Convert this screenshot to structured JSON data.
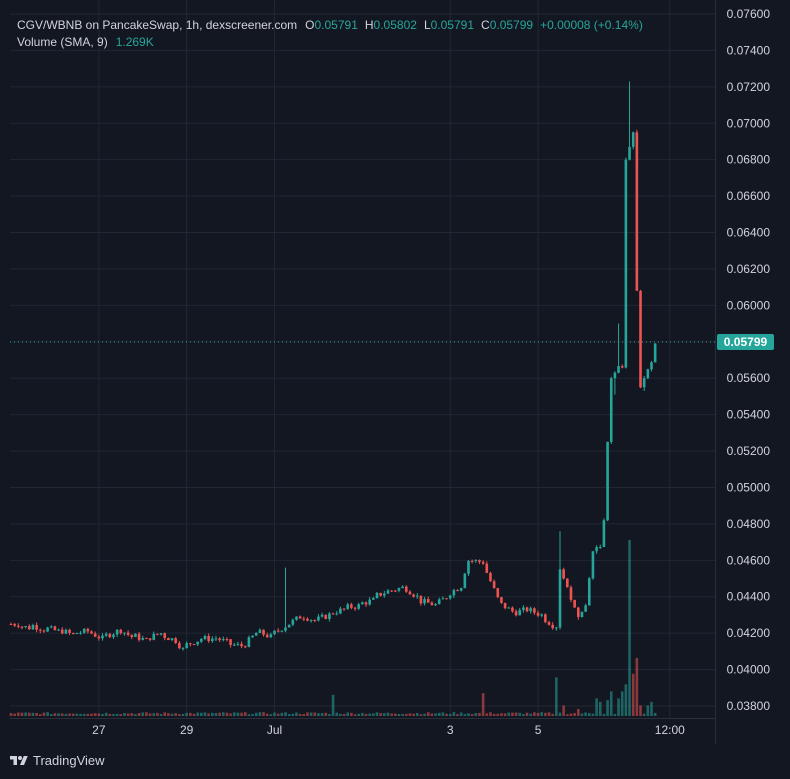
{
  "legend": {
    "symbol": "CGV/WBNB on PancakeSwap, 1h, dexscreener.com",
    "open_label": "O",
    "open": "0.05791",
    "high_label": "H",
    "high": "0.05802",
    "low_label": "L",
    "low": "0.05791",
    "close_label": "C",
    "close": "0.05799",
    "change": "+0.00008 (+0.14%)",
    "volume_title": "Volume (SMA, 9)",
    "volume_value": "1.269K"
  },
  "branding": {
    "name": "TradingView"
  },
  "colors": {
    "up": "#26a69a",
    "down": "#ef5350",
    "background": "#131722",
    "grid": "#232733",
    "text": "#d1d4dc"
  },
  "chart_data": {
    "type": "candlestick",
    "title": "CGV/WBNB on PancakeSwap, 1h",
    "ylim": [
      0.0372,
      0.0763
    ],
    "y_ticks": [
      "0.03800",
      "0.04000",
      "0.04200",
      "0.04400",
      "0.04600",
      "0.04800",
      "0.05000",
      "0.05200",
      "0.05400",
      "0.05600",
      "0.05800",
      "0.06000",
      "0.06200",
      "0.06400",
      "0.06600",
      "0.06800",
      "0.07000",
      "0.07200",
      "0.07400",
      "0.07600"
    ],
    "x_ticks": [
      {
        "label": "27",
        "index": 24
      },
      {
        "label": "29",
        "index": 48
      },
      {
        "label": "Jul",
        "index": 72
      },
      {
        "label": "3",
        "index": 120
      },
      {
        "label": "5",
        "index": 144
      },
      {
        "label": "12:00",
        "index": 180
      }
    ],
    "last_price": "0.05799",
    "grid": true,
    "volume_series": "Volume (SMA, 9)",
    "waypoints": [
      [
        0,
        0.0425,
        0.0425
      ],
      [
        3,
        0.0424,
        0.0423
      ],
      [
        6,
        0.0425,
        0.0422
      ],
      [
        10,
        0.0423,
        0.0421
      ],
      [
        14,
        0.0422,
        0.0419
      ],
      [
        18,
        0.042,
        0.0421
      ],
      [
        22,
        0.0421,
        0.0417
      ],
      [
        26,
        0.0418,
        0.0421
      ],
      [
        30,
        0.0423,
        0.0418
      ],
      [
        34,
        0.0419,
        0.0416
      ],
      [
        38,
        0.0417,
        0.042
      ],
      [
        42,
        0.0419,
        0.0416
      ],
      [
        46,
        0.0416,
        0.0411
      ],
      [
        48,
        0.0413,
        0.0416
      ],
      [
        52,
        0.0417,
        0.0417
      ],
      [
        56,
        0.0418,
        0.0415
      ],
      [
        60,
        0.0414,
        0.0413
      ],
      [
        64,
        0.0412,
        0.042
      ],
      [
        68,
        0.0421,
        0.0418
      ],
      [
        72,
        0.0419,
        0.0424
      ],
      [
        76,
        0.0424,
        0.0429
      ],
      [
        80,
        0.043,
        0.0427
      ],
      [
        84,
        0.0427,
        0.043
      ],
      [
        88,
        0.0431,
        0.0433
      ],
      [
        92,
        0.0434,
        0.0435
      ],
      [
        96,
        0.0436,
        0.0438
      ],
      [
        100,
        0.044,
        0.0443
      ],
      [
        104,
        0.0443,
        0.0445
      ],
      [
        108,
        0.0446,
        0.044
      ],
      [
        112,
        0.0438,
        0.0436
      ],
      [
        116,
        0.0434,
        0.044
      ],
      [
        120,
        0.0441,
        0.0446
      ],
      [
        124,
        0.0448,
        0.046
      ],
      [
        126,
        0.046,
        0.0459
      ],
      [
        130,
        0.0458,
        0.0439
      ],
      [
        134,
        0.0437,
        0.0432
      ],
      [
        138,
        0.0431,
        0.0433
      ],
      [
        142,
        0.0433,
        0.043
      ],
      [
        146,
        0.0429,
        0.0426
      ],
      [
        148,
        0.0425,
        0.0424
      ],
      [
        150,
        0.0425,
        0.0455
      ],
      [
        151,
        0.0455,
        0.045
      ],
      [
        152,
        0.0448,
        0.044
      ],
      [
        154,
        0.0437,
        0.043
      ],
      [
        156,
        0.0432,
        0.0435
      ],
      [
        158,
        0.0437,
        0.0465
      ],
      [
        160,
        0.0465,
        0.0468
      ],
      [
        162,
        0.047,
        0.0482
      ],
      [
        163,
        0.0482,
        0.0525
      ],
      [
        164,
        0.0525,
        0.056
      ],
      [
        165,
        0.056,
        0.0563
      ],
      [
        166,
        0.0563,
        0.0567
      ],
      [
        168,
        0.0567,
        0.068
      ],
      [
        169,
        0.068,
        0.0687
      ],
      [
        170,
        0.0695,
        0.0695
      ],
      [
        171,
        0.0695,
        0.0608
      ],
      [
        172,
        0.0608,
        0.0555
      ],
      [
        173,
        0.0555,
        0.056
      ],
      [
        174,
        0.056,
        0.0568
      ],
      [
        176,
        0.0568,
        0.0579
      ]
    ],
    "volume_spikes": [
      {
        "index": 88,
        "value": 12,
        "side": "up"
      },
      {
        "index": 129,
        "value": 13,
        "side": "down"
      },
      {
        "index": 149,
        "value": 22,
        "side": "up"
      },
      {
        "index": 169,
        "value": 100,
        "side": "up"
      },
      {
        "index": 171,
        "value": 33,
        "side": "down"
      },
      {
        "index": 170,
        "value": 24,
        "side": "down"
      },
      {
        "index": 168,
        "value": 18,
        "side": "up"
      },
      {
        "index": 167,
        "value": 14,
        "side": "up"
      },
      {
        "index": 166,
        "value": 10,
        "side": "up"
      },
      {
        "index": 172,
        "value": 6,
        "side": "down"
      },
      {
        "index": 174,
        "value": 6,
        "side": "up"
      },
      {
        "index": 175,
        "value": 8,
        "side": "up"
      },
      {
        "index": 160,
        "value": 10,
        "side": "up"
      },
      {
        "index": 161,
        "value": 8,
        "side": "up"
      },
      {
        "index": 163,
        "value": 9,
        "side": "up"
      },
      {
        "index": 164,
        "value": 14,
        "side": "up"
      },
      {
        "index": 151,
        "value": 6,
        "side": "down"
      },
      {
        "index": 155,
        "value": 4,
        "side": "down"
      }
    ]
  }
}
